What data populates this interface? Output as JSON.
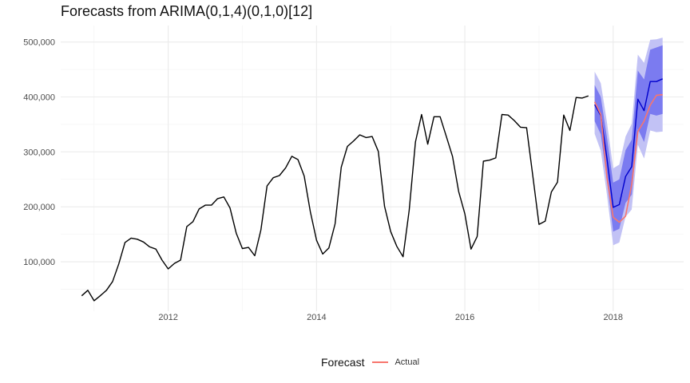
{
  "chart_data": {
    "type": "line",
    "title": "Forecasts from ARIMA(0,1,4)(0,1,0)[12]",
    "legend": {
      "title": "Forecast",
      "position": "bottom",
      "entries": [
        "Actual"
      ]
    },
    "xlim": [
      2010.55,
      2018.95
    ],
    "ylim": [
      10000,
      530000
    ],
    "x_ticks": [
      2012,
      2014,
      2016,
      2018
    ],
    "x_tick_labels": [
      "2012",
      "2014",
      "2016",
      "2018"
    ],
    "y_ticks": [
      100000,
      200000,
      300000,
      400000,
      500000
    ],
    "y_tick_labels": [
      "100,000",
      "200,000",
      "300,000",
      "400,000",
      "500,000"
    ],
    "grid": true,
    "colors": {
      "history": "#000000",
      "forecast_mean": "#0000cc",
      "band_80": "#7b7bf0",
      "band_95": "#c2c2f5",
      "actual": "#f8766d"
    },
    "history": {
      "start": 2010.8333,
      "step": 0.083333,
      "values": [
        38000,
        48000,
        29000,
        38000,
        48000,
        64000,
        96000,
        135000,
        143000,
        141000,
        136000,
        127000,
        123000,
        103000,
        87000,
        97000,
        103000,
        164000,
        173000,
        196000,
        203000,
        203000,
        215000,
        218000,
        198000,
        152000,
        124000,
        126000,
        111000,
        158000,
        238000,
        253000,
        257000,
        271000,
        292000,
        286000,
        256000,
        191000,
        139000,
        114000,
        125000,
        169000,
        272000,
        310000,
        320000,
        331000,
        326000,
        328000,
        301000,
        201000,
        155000,
        128000,
        109000,
        194000,
        318000,
        368000,
        314000,
        364000,
        364000,
        328000,
        292000,
        228000,
        187000,
        123000,
        146000,
        283000,
        285000,
        289000,
        368000,
        367000,
        357000,
        345000,
        344000,
        256000,
        168000,
        174000,
        227000,
        245000,
        367000,
        339000,
        399000,
        398000,
        402000
      ]
    },
    "forecast": {
      "start": 2017.75,
      "step": 0.083333,
      "mean": [
        386000,
        366000,
        288000,
        199000,
        204000,
        255000,
        273000,
        396000,
        375000,
        428000,
        428000,
        433000
      ],
      "lo80": [
        356000,
        332000,
        248000,
        155000,
        160000,
        207000,
        222000,
        342000,
        318000,
        369000,
        366000,
        369000
      ],
      "hi80": [
        422000,
        400000,
        326000,
        244000,
        250000,
        303000,
        322000,
        448000,
        432000,
        486000,
        490000,
        494000
      ],
      "lo95": [
        333000,
        302000,
        222000,
        130000,
        135000,
        182000,
        195000,
        313000,
        288000,
        339000,
        336000,
        337000
      ],
      "hi95": [
        446000,
        425000,
        354000,
        270000,
        277000,
        328000,
        351000,
        477000,
        462000,
        504000,
        505000,
        508000
      ]
    },
    "actual": {
      "start": 2017.75,
      "step": 0.083333,
      "values": [
        391000,
        368000,
        253000,
        181000,
        172000,
        183000,
        241000,
        337000,
        356000,
        385000,
        403000,
        404000
      ]
    }
  }
}
